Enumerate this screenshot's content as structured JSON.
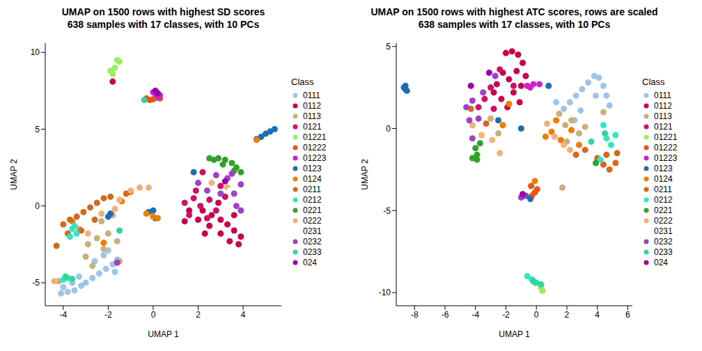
{
  "chart_data": [
    {
      "type": "scatter",
      "title": "UMAP on 1500 rows with highest SD scores",
      "subtitle": "638 samples with 17 classes, with 10 PCs",
      "x_label": "UMAP 1",
      "y_label": "UMAP 2",
      "xlim": [
        -4.8,
        5.7
      ],
      "ylim": [
        -6.5,
        10.6
      ],
      "xticks": [
        -4,
        -2,
        0,
        2,
        4
      ],
      "yticks": [
        -5,
        0,
        5,
        10
      ],
      "legend": "right",
      "legend_title": "Class",
      "marker": "circle",
      "series": [
        {
          "name": "0111",
          "color": "#9EC5E8",
          "x": [
            -4.1,
            -3.8,
            -3.5,
            -3.2,
            -3.0,
            -2.7,
            -2.4,
            -2.1,
            -1.8,
            -1.6,
            -2.2,
            -2.6,
            -3.3,
            -2.0,
            -1.7,
            -4.0,
            -3.6
          ],
          "y": [
            -5.7,
            -5.6,
            -5.5,
            -5.2,
            -5.0,
            -4.7,
            -4.4,
            -4.1,
            -3.8,
            -3.5,
            -3.2,
            -3.6,
            -4.6,
            -2.9,
            -4.3,
            -5.3,
            -5.0
          ]
        },
        {
          "name": "0112",
          "color": "#C8004B",
          "x": [
            2.2,
            2.6,
            3.0,
            3.3,
            3.6,
            3.9,
            3.8,
            3.4,
            3.0,
            2.5,
            2.0,
            1.6,
            2.9,
            3.6,
            -1.8,
            2.3,
            1.4
          ],
          "y": [
            -0.3,
            -0.6,
            -0.9,
            -1.2,
            -1.6,
            -2.0,
            -2.5,
            -2.3,
            -1.8,
            -1.3,
            -0.9,
            -0.3,
            0.2,
            -0.6,
            8.1,
            -1.8,
            -1.0
          ]
        },
        {
          "name": "0113",
          "color": "#C8B07A",
          "x": [
            -3.3,
            -2.9,
            -2.5,
            -2.0,
            -1.6,
            -2.3,
            -3.0,
            -2.7,
            -1.8,
            -4.2,
            -1.5,
            -2.2
          ],
          "y": [
            -1.5,
            -2.5,
            -2.1,
            -1.8,
            -2.3,
            -1.0,
            -3.3,
            -3.9,
            -0.6,
            -4.9,
            -3.6,
            -2.8
          ]
        },
        {
          "name": "0121",
          "color": "#CC1166",
          "x": [
            1.4,
            1.8,
            2.1,
            2.5,
            2.8,
            3.2,
            1.6,
            2.4,
            1.9,
            2.2,
            3.0
          ],
          "y": [
            0.2,
            0.5,
            0.0,
            0.4,
            -0.3,
            0.6,
            -0.6,
            -0.8,
            1.0,
            2.2,
            1.3
          ]
        },
        {
          "name": "01221",
          "color": "#99EE66",
          "x": [
            -1.6,
            -1.5,
            -1.9,
            -1.8,
            -1.7
          ],
          "y": [
            9.5,
            9.4,
            8.8,
            8.6,
            9.0
          ]
        },
        {
          "name": "01222",
          "color": "#E8541C",
          "x": [
            -0.3,
            0.0,
            0.3,
            -0.15,
            0.2
          ],
          "y": [
            7.0,
            6.95,
            7.0,
            6.9,
            7.05
          ]
        },
        {
          "name": "01223",
          "color": "#CC22CC",
          "x": [
            0.1,
            0.25,
            0.0,
            0.3
          ],
          "y": [
            7.3,
            7.1,
            7.4,
            7.2
          ]
        },
        {
          "name": "0123",
          "color": "#1F6FB0",
          "x": [
            4.6,
            4.8,
            5.0,
            5.2,
            5.4,
            0.0,
            -0.2,
            -1.9,
            1.8,
            -2.0,
            0.1
          ],
          "y": [
            4.35,
            4.5,
            4.7,
            4.85,
            5.0,
            -0.3,
            -0.4,
            -0.5,
            2.2,
            -0.7,
            -0.8
          ]
        },
        {
          "name": "0124",
          "color": "#F07D00",
          "x": [
            -0.3,
            0.0,
            0.2,
            -1.0,
            -2.2,
            -3.6,
            4.6,
            -1.4
          ],
          "y": [
            -0.5,
            -0.7,
            -0.8,
            0.9,
            -2.4,
            -1.0,
            4.3,
            0.3
          ]
        },
        {
          "name": "0211",
          "color": "#D2691E",
          "x": [
            -4.0,
            -3.7,
            -3.4,
            -3.1,
            -2.8,
            -2.5,
            -2.2,
            -3.8,
            -3.2,
            -2.6,
            -1.9,
            -4.3,
            -1.2
          ],
          "y": [
            -1.2,
            -0.9,
            -0.7,
            -0.4,
            -0.1,
            0.2,
            0.5,
            -1.8,
            -1.6,
            -0.9,
            0.6,
            -2.6,
            0.8
          ]
        },
        {
          "name": "0212",
          "color": "#33E6C0",
          "x": [
            -3.6,
            -3.4,
            -3.7,
            -4.0,
            -3.8,
            -3.5
          ],
          "y": [
            -1.5,
            -1.8,
            -2.0,
            -4.8,
            -4.7,
            -1.3
          ]
        },
        {
          "name": "0221",
          "color": "#33A02C",
          "x": [
            2.5,
            2.9,
            3.2,
            3.5,
            3.7,
            3.9,
            3.6,
            3.1,
            2.7
          ],
          "y": [
            3.1,
            3.1,
            3.0,
            2.8,
            2.5,
            2.2,
            2.3,
            2.7,
            3.0
          ]
        },
        {
          "name": "0222",
          "color": "#F4B07A",
          "x": [
            -0.6,
            -0.2,
            -1.0,
            -2.3,
            -1.7,
            -2.9,
            -1.5,
            2.6,
            3.3,
            -4.4
          ],
          "y": [
            1.2,
            1.2,
            1.0,
            -0.5,
            -0.2,
            -1.8,
            0.4,
            1.5,
            1.2,
            -4.9
          ]
        },
        {
          "name": "0231",
          "color": "#FFFFFF",
          "x": [
            2.9,
            3.4
          ],
          "y": [
            1.7,
            1.0
          ]
        },
        {
          "name": "0232",
          "color": "#A040C8",
          "x": [
            2.8,
            3.3,
            3.6,
            3.9,
            2.4,
            3.0,
            3.7,
            2.0,
            3.9,
            3.5,
            -1.6
          ],
          "y": [
            2.0,
            1.8,
            0.8,
            1.4,
            1.0,
            0.8,
            0.0,
            1.5,
            -0.3,
            2.1,
            -3.7
          ]
        },
        {
          "name": "0233",
          "color": "#30D5A0",
          "x": [
            -3.9,
            -3.6,
            -0.4,
            -1.5
          ],
          "y": [
            -4.6,
            -4.75,
            6.9,
            -1.6
          ]
        },
        {
          "name": "024",
          "color": "#9900AA",
          "x": [
            0.1,
            0.2,
            3.2
          ],
          "y": [
            7.5,
            7.35,
            1.6
          ]
        }
      ]
    },
    {
      "type": "scatter",
      "title": "UMAP on 1500 rows with highest ATC scores, rows are scaled",
      "subtitle": "638 samples with 17 classes, with 10 PCs",
      "x_label": "UMAP 1",
      "y_label": "UMAP 2",
      "xlim": [
        -9.2,
        6.3
      ],
      "ylim": [
        -10.8,
        5.2
      ],
      "xticks": [
        -8,
        -6,
        -4,
        -2,
        0,
        2,
        4,
        6
      ],
      "yticks": [
        -10,
        -5,
        0,
        5
      ],
      "legend": "right",
      "legend_title": "Class",
      "marker": "circle",
      "series": [
        {
          "name": "0111",
          "color": "#9EC5E8",
          "x": [
            1.8,
            2.2,
            2.6,
            3.0,
            3.4,
            3.8,
            4.1,
            4.4,
            4.6,
            2.9,
            2.5,
            1.3,
            3.9,
            4.8
          ],
          "y": [
            1.2,
            1.6,
            2.0,
            2.4,
            2.8,
            3.2,
            3.1,
            2.6,
            2.0,
            1.1,
            0.5,
            1.6,
            2.0,
            1.4
          ]
        },
        {
          "name": "0112",
          "color": "#C8004B",
          "x": [
            -2.0,
            -1.6,
            -1.2,
            -0.9,
            -1.3,
            -1.8,
            -2.2,
            -2.6,
            -1.5,
            -1.0,
            -2.3,
            -1.9,
            -0.7,
            -2.8,
            -1.1
          ],
          "y": [
            4.6,
            4.7,
            4.5,
            4.0,
            3.5,
            3.0,
            3.4,
            2.7,
            2.2,
            2.6,
            1.8,
            1.3,
            3.2,
            2.2,
            1.6
          ]
        },
        {
          "name": "0113",
          "color": "#C8B07A",
          "x": [
            1.9,
            2.3,
            2.8,
            3.2,
            2.0,
            1.5,
            -3.0,
            -2.5,
            1.7,
            4.4
          ],
          "y": [
            0.2,
            0.5,
            -0.3,
            0.1,
            -0.8,
            0.9,
            0.6,
            -0.3,
            -3.6,
            1.0
          ]
        },
        {
          "name": "0121",
          "color": "#CC1166",
          "x": [
            -3.0,
            -3.4,
            -2.8,
            -2.4,
            -1.5,
            -3.8
          ],
          "y": [
            2.5,
            1.8,
            1.2,
            3.6,
            2.6,
            1.3
          ]
        },
        {
          "name": "01221",
          "color": "#99EE66",
          "x": [
            0.3,
            0.4,
            -0.1
          ],
          "y": [
            -9.7,
            -9.9,
            -9.4
          ]
        },
        {
          "name": "01222",
          "color": "#E8541C",
          "x": [
            -0.35,
            -0.1,
            -0.3,
            0.05
          ],
          "y": [
            -3.5,
            -3.9,
            -4.1,
            -3.7
          ]
        },
        {
          "name": "01223",
          "color": "#CC22CC",
          "x": [
            -0.6,
            -0.2,
            0.2,
            -0.4
          ],
          "y": [
            2.6,
            2.7,
            2.7,
            2.5
          ]
        },
        {
          "name": "0123",
          "color": "#1F6FB0",
          "x": [
            -8.7,
            -8.6,
            -8.5,
            -8.6,
            -0.7,
            -0.4,
            -1.0,
            0.8,
            -2.5
          ],
          "y": [
            2.5,
            2.6,
            2.3,
            2.4,
            -4.1,
            -4.3,
            0.0,
            2.6,
            0.5
          ]
        },
        {
          "name": "0124",
          "color": "#F07D00",
          "x": [
            -1.8,
            0.6,
            1.0,
            1.6,
            2.3,
            -0.1,
            2.8,
            -2.2,
            1.3
          ],
          "y": [
            1.5,
            -0.5,
            -0.2,
            -0.7,
            -0.1,
            -3.2,
            -1.0,
            0.2,
            0.5
          ]
        },
        {
          "name": "0211",
          "color": "#D2691E",
          "x": [
            4.0,
            4.4,
            4.8,
            5.2,
            5.3,
            4.6,
            3.2,
            2.6,
            -3.3,
            -4.3
          ],
          "y": [
            -1.8,
            -2.2,
            -2.5,
            -2.1,
            -1.5,
            -1.6,
            -1.3,
            -1.6,
            0.3,
            1.2
          ]
        },
        {
          "name": "0212",
          "color": "#33E6C0",
          "x": [
            4.6,
            4.9,
            5.2,
            4.4,
            4.2,
            -0.6,
            -0.3
          ],
          "y": [
            -0.6,
            -1.0,
            -0.4,
            0.2,
            -1.9,
            -9.0,
            -9.2
          ]
        },
        {
          "name": "0221",
          "color": "#33A02C",
          "x": [
            -4.2,
            -3.9,
            -4.0,
            -3.7,
            3.9,
            -3.9
          ],
          "y": [
            -1.8,
            -1.6,
            -1.2,
            -0.9,
            -2.1,
            -1.9
          ]
        },
        {
          "name": "0222",
          "color": "#F4B07A",
          "x": [
            -4.2,
            -3.6,
            -2.9,
            1.2,
            1.8,
            2.2,
            -2.4,
            0.7
          ],
          "y": [
            0.2,
            -0.4,
            -0.7,
            -0.5,
            -1.0,
            -1.3,
            -1.5,
            0.3
          ]
        },
        {
          "name": "0231",
          "color": "#FFFFFF",
          "x": [
            2.5,
            -2.0
          ],
          "y": [
            1.2,
            0.8
          ]
        },
        {
          "name": "0232",
          "color": "#A040C8",
          "x": [
            -4.2,
            -4.6,
            -3.8,
            -4.4,
            -3.5,
            -4.2,
            -1.0,
            -0.8,
            -2.7
          ],
          "y": [
            1.7,
            1.3,
            0.6,
            0.5,
            2.2,
            -0.6,
            -4.2,
            -4.1,
            3.2
          ]
        },
        {
          "name": "0233",
          "color": "#30D5A0",
          "x": [
            -0.2,
            0.0,
            3.6,
            4.5,
            0.3
          ],
          "y": [
            -9.3,
            -9.4,
            -0.8,
            -0.3,
            -9.5
          ]
        },
        {
          "name": "024",
          "color": "#9900AA",
          "x": [
            -3.1,
            -0.9,
            -4.3
          ],
          "y": [
            3.4,
            -4.0,
            2.6
          ]
        }
      ]
    }
  ]
}
